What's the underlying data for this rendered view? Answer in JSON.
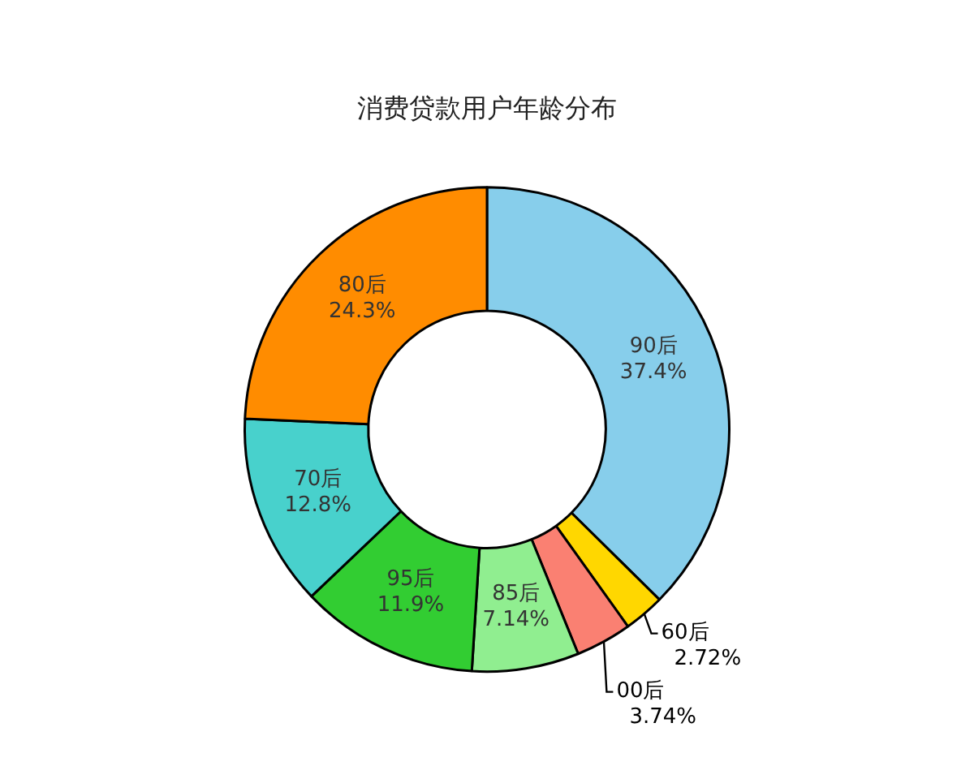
{
  "chart_data": {
    "type": "donut",
    "title": "消费贷款用户年龄分布",
    "categories": [
      "90后",
      "60后",
      "00后",
      "85后",
      "95后",
      "70后",
      "80后"
    ],
    "values": [
      37.4,
      2.72,
      3.74,
      7.14,
      11.9,
      12.8,
      24.3
    ],
    "value_labels": [
      "37.4%",
      "2.72%",
      "3.74%",
      "7.14%",
      "11.9%",
      "12.8%",
      "24.3%"
    ],
    "colors": [
      "#87ceeb",
      "#ffd700",
      "#fa8072",
      "#90ee90",
      "#32cd32",
      "#48d1cc",
      "#ff8c00"
    ],
    "legend": false
  }
}
